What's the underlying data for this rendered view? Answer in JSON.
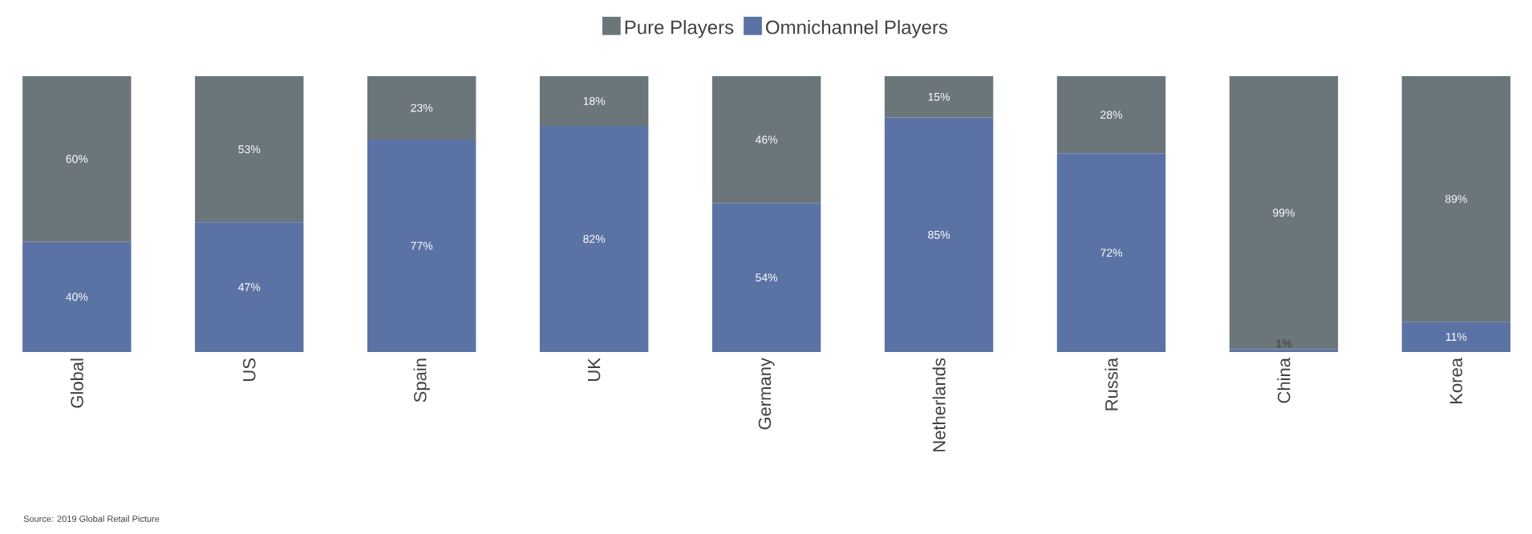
{
  "chart_data": {
    "type": "bar",
    "stacked": true,
    "categories": [
      "Global",
      "US",
      "Spain",
      "UK",
      "Germany",
      "Netherlands",
      "Russia",
      "China",
      "Korea"
    ],
    "series": [
      {
        "name": "Omnichannel Players",
        "color": "#5b72a4",
        "values": [
          40,
          47,
          77,
          82,
          54,
          85,
          72,
          1,
          11
        ],
        "value_labels": [
          "40%",
          "47%",
          "77%",
          "82%",
          "54%",
          "85%",
          "72%",
          "1%",
          "11%"
        ]
      },
      {
        "name": "Pure Players",
        "color": "#6b767b",
        "values": [
          60,
          53,
          23,
          18,
          46,
          15,
          28,
          99,
          89
        ],
        "value_labels": [
          "60%",
          "53%",
          "23%",
          "18%",
          "46%",
          "15%",
          "28%",
          "99%",
          "89%"
        ]
      }
    ],
    "ylim": [
      0,
      100
    ],
    "tick_labels": "x",
    "legend": "top",
    "annotations": [
      "Source: 2019 Global Retail Picture"
    ]
  }
}
